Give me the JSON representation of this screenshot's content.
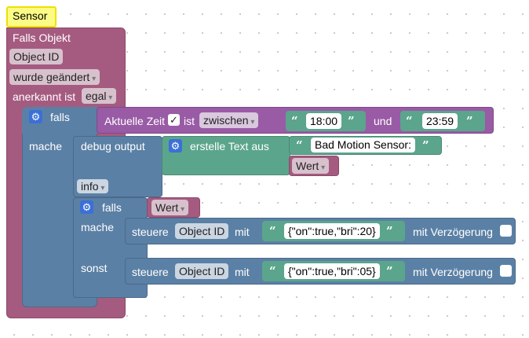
{
  "comment": {
    "text": "Sensor"
  },
  "trigger": {
    "title": "Falls Objekt",
    "object_field": "Object ID",
    "change_select": "wurde geändert",
    "ack_label": "anerkannt ist",
    "ack_select": "egal"
  },
  "if_block": {
    "if_label": "falls",
    "do_label": "mache",
    "condition": {
      "label": "Aktuelle Zeit",
      "checked": "✓",
      "is_label": "ist",
      "operator": "zwischen",
      "from": "18:00",
      "and_label": "und",
      "to": "23:59"
    },
    "debug": {
      "label": "debug output",
      "level": "info",
      "text_label": "erstelle Text aus",
      "text_value": "Bad Motion Sensor:",
      "value_var": "Wert"
    },
    "inner_if": {
      "if_label": "falls",
      "condition": "Wert",
      "do_label": "mache",
      "else_label": "sonst",
      "control_on": {
        "label": "steuere",
        "object": "Object ID",
        "with_label": "mit",
        "value": "{\"on\":true,\"bri\":20}",
        "delay_label": "mit Verzögerung"
      },
      "control_off": {
        "label": "steuere",
        "object": "Object ID",
        "with_label": "mit",
        "value": "{\"on\":true,\"bri\":05}",
        "delay_label": "mit Verzögerung"
      }
    }
  },
  "colors": {
    "trigger": "#a55b80",
    "logic": "#5b80a5",
    "time": "#995ba5",
    "text": "#5ba58c",
    "variable": "#a55b80",
    "comment": "#fbfb86",
    "gear": "#3b6fd8"
  },
  "icons": {
    "gear": "gear-icon",
    "quote_open": "quote-open-icon",
    "quote_close": "quote-close-icon"
  }
}
